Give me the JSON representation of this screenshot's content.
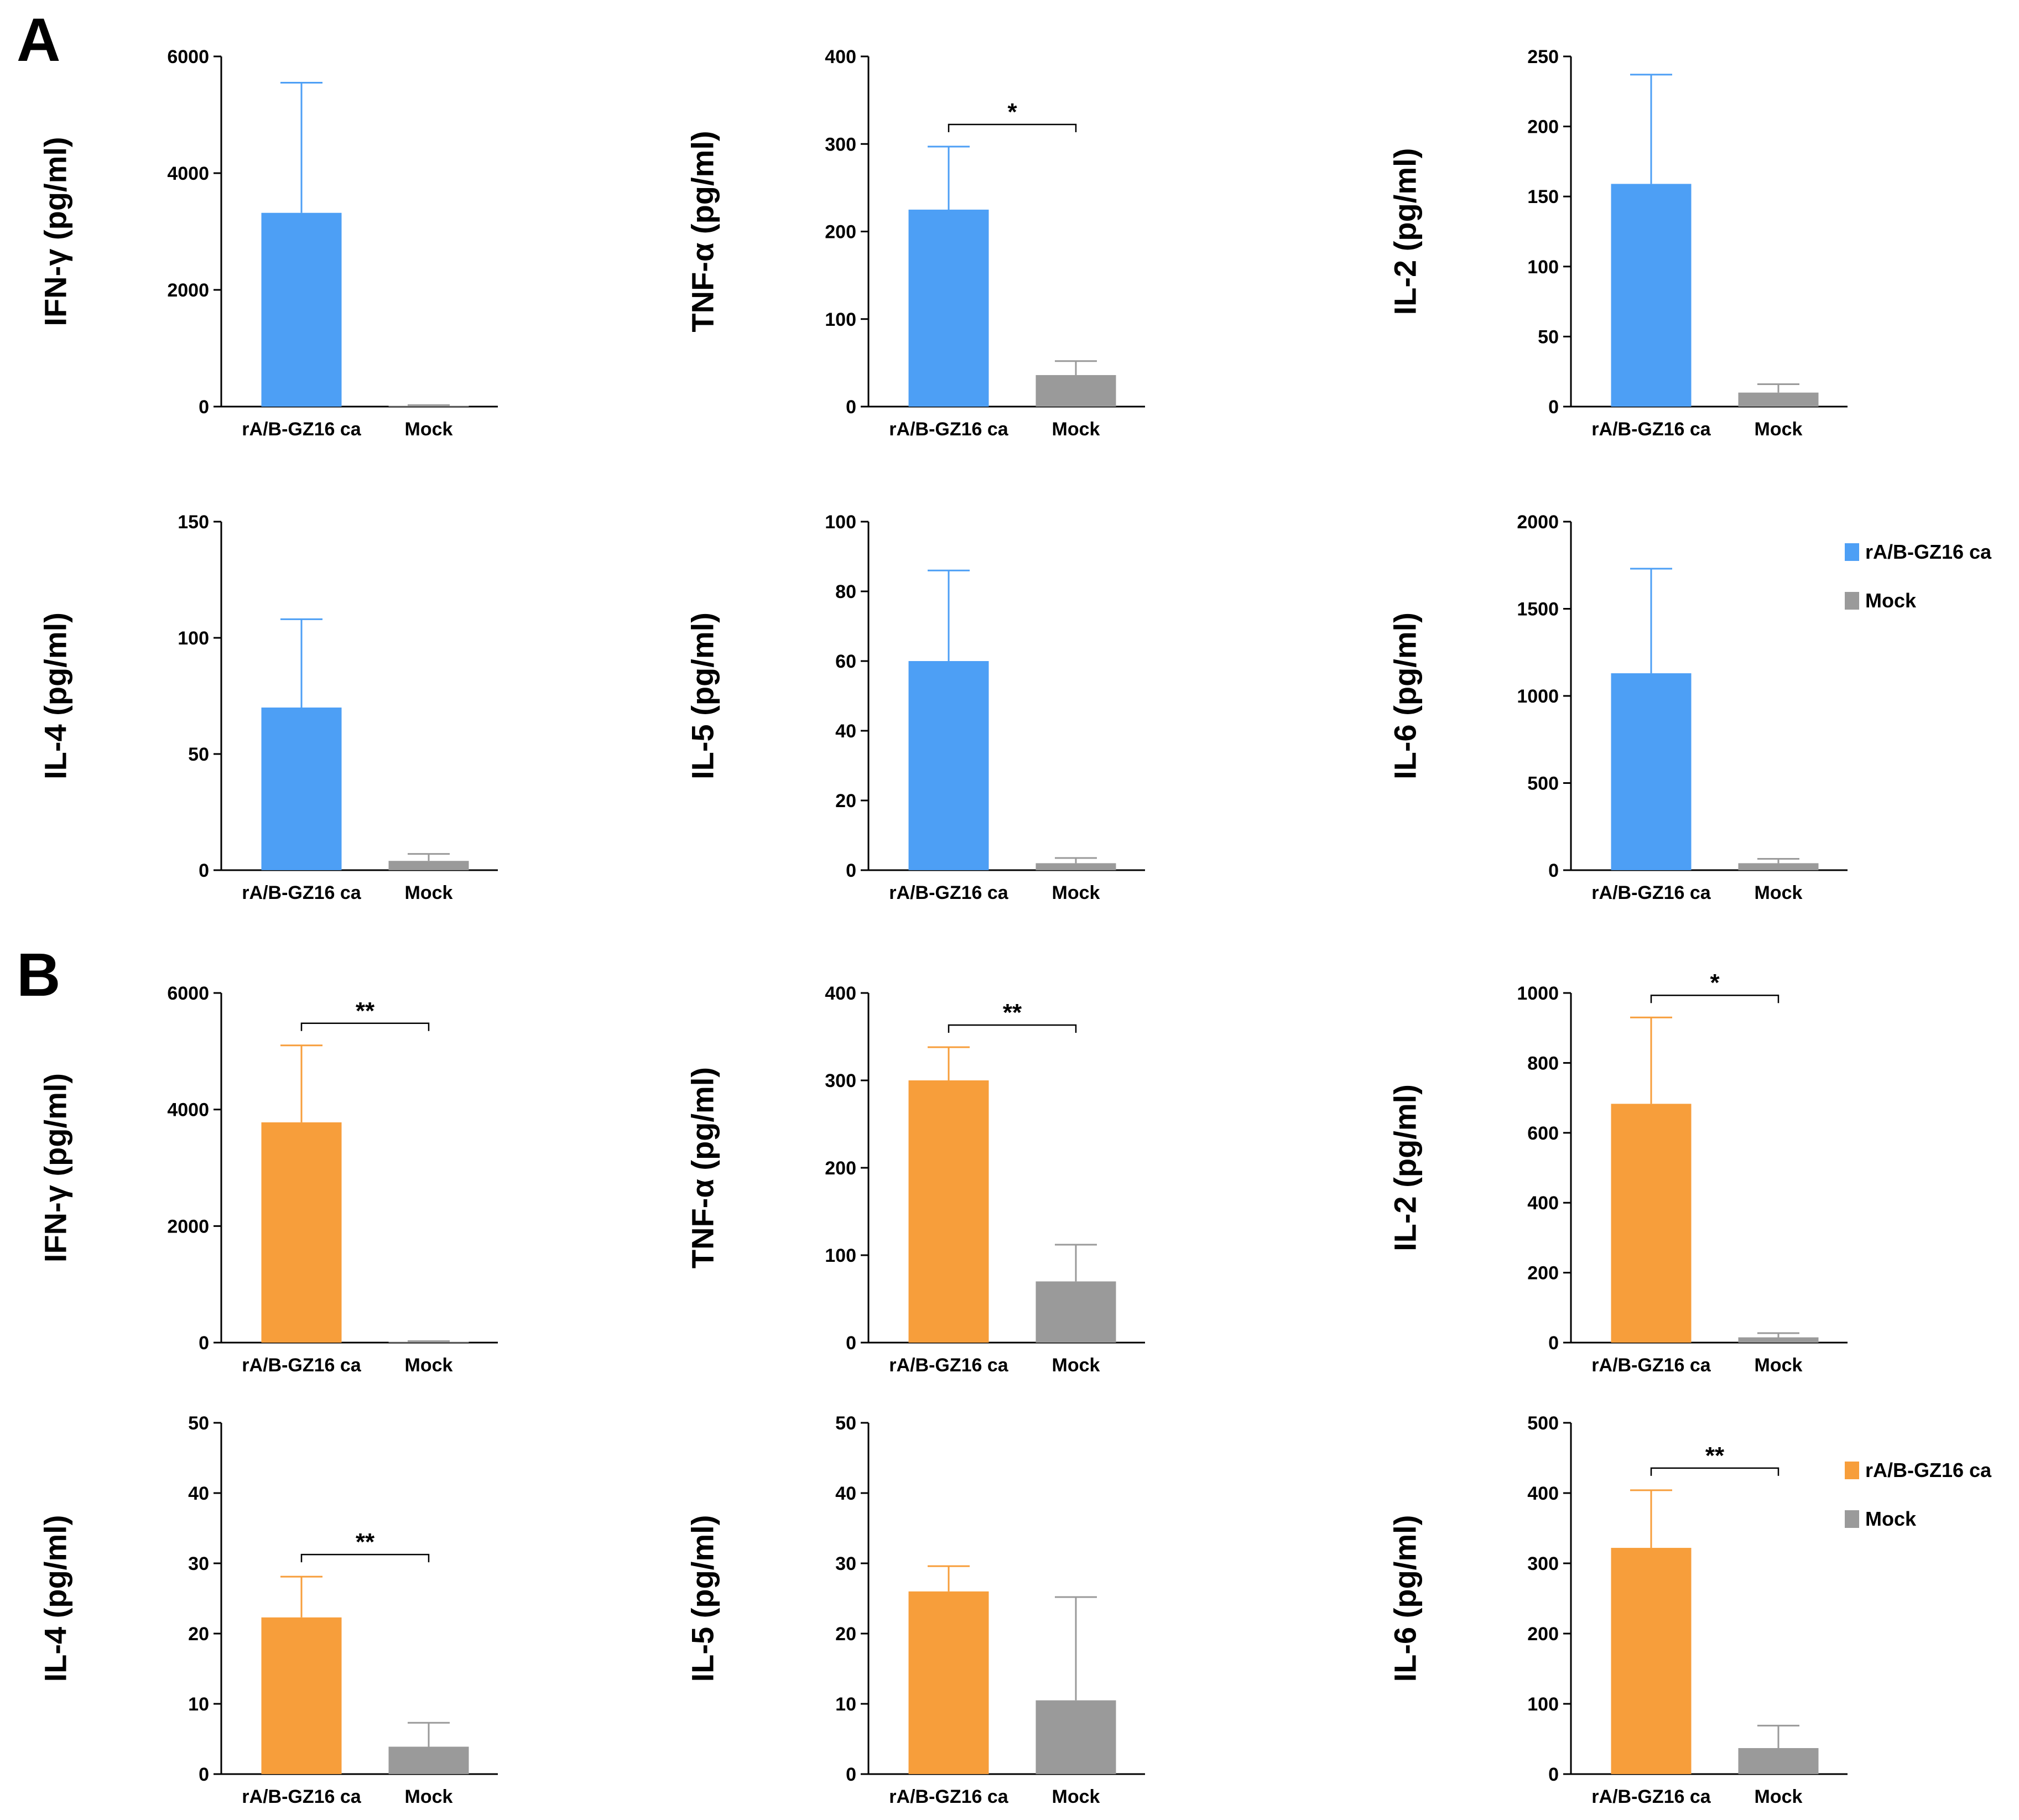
{
  "panels": [
    {
      "letter": "A"
    },
    {
      "letter": "B"
    }
  ],
  "colors": {
    "panel_a_bar": "#4d9ff5",
    "panel_a_err": "#4d9ff5",
    "panel_b_bar": "#f79e3b",
    "panel_b_err": "#f79e3b",
    "mock_bar": "#9a9a9a",
    "mock_err": "#9a9a9a"
  },
  "legends": [
    {
      "panel": "A",
      "items": [
        {
          "label": "rA/B-GZ16 ca",
          "color": "#4d9ff5"
        },
        {
          "label": "Mock",
          "color": "#9a9a9a"
        }
      ]
    },
    {
      "panel": "B",
      "items": [
        {
          "label": "rA/B-GZ16 ca",
          "color": "#f79e3b"
        },
        {
          "label": "Mock",
          "color": "#9a9a9a"
        }
      ]
    }
  ],
  "chart_data": [
    {
      "type": "bar",
      "panel": "A",
      "title": "",
      "ylabel": "IFN-γ (pg/ml)",
      "categories": [
        "rA/B-GZ16 ca",
        "Mock"
      ],
      "values": [
        3320,
        15
      ],
      "errors": [
        2230,
        10
      ],
      "ylim": [
        0,
        6000
      ],
      "yticks": [
        0,
        2000,
        4000,
        6000
      ],
      "significance": null
    },
    {
      "type": "bar",
      "panel": "A",
      "title": "",
      "ylabel": "TNF-α (pg/ml)",
      "categories": [
        "rA/B-GZ16 ca",
        "Mock"
      ],
      "values": [
        225,
        36
      ],
      "errors": [
        72,
        16
      ],
      "ylim": [
        0,
        400
      ],
      "yticks": [
        0,
        100,
        200,
        300,
        400
      ],
      "significance": "*"
    },
    {
      "type": "bar",
      "panel": "A",
      "title": "",
      "ylabel": "IL-2 (pg/ml)",
      "categories": [
        "rA/B-GZ16 ca",
        "Mock"
      ],
      "values": [
        159,
        10
      ],
      "errors": [
        78,
        6
      ],
      "ylim": [
        0,
        250
      ],
      "yticks": [
        0,
        50,
        100,
        150,
        200,
        250
      ],
      "significance": null
    },
    {
      "type": "bar",
      "panel": "A",
      "title": "",
      "ylabel": "IL-4 (pg/ml)",
      "categories": [
        "rA/B-GZ16 ca",
        "Mock"
      ],
      "values": [
        70,
        4
      ],
      "errors": [
        38,
        3
      ],
      "ylim": [
        0,
        150
      ],
      "yticks": [
        0,
        50,
        100,
        150
      ],
      "significance": null
    },
    {
      "type": "bar",
      "panel": "A",
      "title": "",
      "ylabel": "IL-5 (pg/ml)",
      "categories": [
        "rA/B-GZ16 ca",
        "Mock"
      ],
      "values": [
        60,
        2
      ],
      "errors": [
        26,
        1.5
      ],
      "ylim": [
        0,
        100
      ],
      "yticks": [
        0,
        20,
        40,
        60,
        80,
        100
      ],
      "significance": null
    },
    {
      "type": "bar",
      "panel": "A",
      "title": "",
      "ylabel": "IL-6 (pg/ml)",
      "categories": [
        "rA/B-GZ16 ca",
        "Mock"
      ],
      "values": [
        1130,
        40
      ],
      "errors": [
        600,
        25
      ],
      "ylim": [
        0,
        2000
      ],
      "yticks": [
        0,
        500,
        1000,
        1500,
        2000
      ],
      "significance": null
    },
    {
      "type": "bar",
      "panel": "B",
      "title": "",
      "ylabel": "IFN-γ (pg/ml)",
      "categories": [
        "rA/B-GZ16 ca",
        "Mock"
      ],
      "values": [
        3780,
        15
      ],
      "errors": [
        1320,
        10
      ],
      "ylim": [
        0,
        6000
      ],
      "yticks": [
        0,
        2000,
        4000,
        6000
      ],
      "significance": "**"
    },
    {
      "type": "bar",
      "panel": "B",
      "title": "",
      "ylabel": "TNF-α (pg/ml)",
      "categories": [
        "rA/B-GZ16 ca",
        "Mock"
      ],
      "values": [
        300,
        70
      ],
      "errors": [
        38,
        42
      ],
      "ylim": [
        0,
        400
      ],
      "yticks": [
        0,
        100,
        200,
        300,
        400
      ],
      "significance": "**"
    },
    {
      "type": "bar",
      "panel": "B",
      "title": "",
      "ylabel": "IL-2 (pg/ml)",
      "categories": [
        "rA/B-GZ16 ca",
        "Mock"
      ],
      "values": [
        683,
        15
      ],
      "errors": [
        247,
        12
      ],
      "ylim": [
        0,
        1000
      ],
      "yticks": [
        0,
        200,
        400,
        600,
        800,
        1000
      ],
      "significance": "*"
    },
    {
      "type": "bar",
      "panel": "B",
      "title": "",
      "ylabel": "IL-4 (pg/ml)",
      "categories": [
        "rA/B-GZ16 ca",
        "Mock"
      ],
      "values": [
        22.3,
        3.9
      ],
      "errors": [
        5.8,
        3.4
      ],
      "ylim": [
        0,
        50
      ],
      "yticks": [
        0,
        10,
        20,
        30,
        40,
        50
      ],
      "significance": "**"
    },
    {
      "type": "bar",
      "panel": "B",
      "title": "",
      "ylabel": "IL-5 (pg/ml)",
      "categories": [
        "rA/B-GZ16 ca",
        "Mock"
      ],
      "values": [
        26,
        10.5
      ],
      "errors": [
        3.6,
        14.7
      ],
      "ylim": [
        0,
        50
      ],
      "yticks": [
        0,
        10,
        20,
        30,
        40,
        50
      ],
      "significance": null
    },
    {
      "type": "bar",
      "panel": "B",
      "title": "",
      "ylabel": "IL-6 (pg/ml)",
      "categories": [
        "rA/B-GZ16 ca",
        "Mock"
      ],
      "values": [
        322,
        37
      ],
      "errors": [
        82,
        32
      ],
      "ylim": [
        0,
        500
      ],
      "yticks": [
        0,
        100,
        200,
        300,
        400,
        500
      ],
      "significance": "**"
    }
  ]
}
